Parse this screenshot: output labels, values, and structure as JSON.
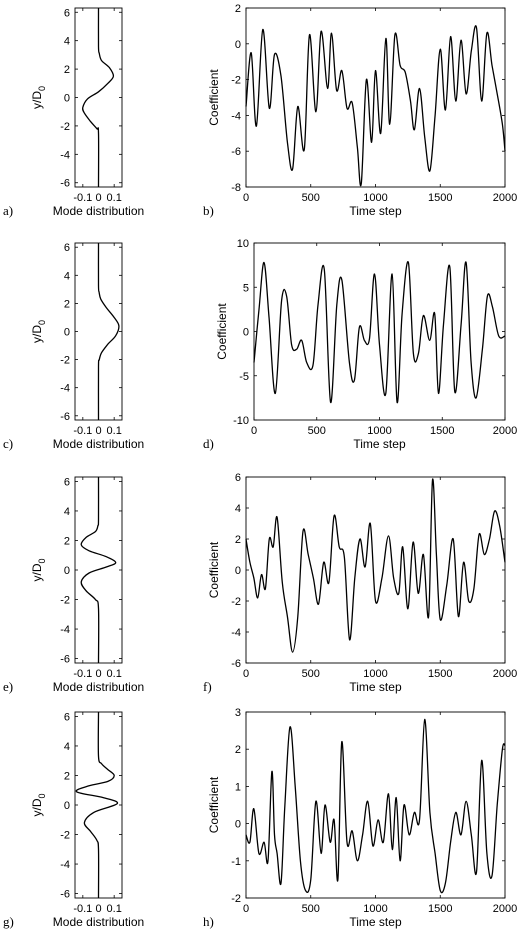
{
  "chart_data": [
    {
      "type": "line",
      "panel_label": "a)",
      "xlabel": "Mode distribution",
      "ylabel": "y/D_0",
      "xlim": [
        -0.15,
        0.15
      ],
      "ylim": [
        -6.3,
        6.3
      ],
      "xticks": [
        -0.1,
        0,
        0.1
      ],
      "xticklabels": [
        "-0.1",
        "0",
        "0.1"
      ],
      "yticks": [
        -6,
        -4,
        -2,
        0,
        2,
        4,
        6
      ],
      "yticklabels": [
        "-6",
        "-4",
        "-2",
        "0",
        "2",
        "4",
        "6"
      ],
      "curve_points": [
        [
          0,
          -6.3
        ],
        [
          0,
          -2.5
        ],
        [
          -0.01,
          -2.2
        ],
        [
          -0.05,
          -1.7
        ],
        [
          -0.09,
          -1.1
        ],
        [
          -0.1,
          -0.7
        ],
        [
          -0.07,
          -0.1
        ],
        [
          0,
          0.4
        ],
        [
          0.06,
          1.0
        ],
        [
          0.095,
          1.5
        ],
        [
          0.07,
          2.1
        ],
        [
          0.02,
          2.6
        ],
        [
          0.005,
          3.1
        ],
        [
          0,
          3.6
        ],
        [
          0,
          6.3
        ]
      ]
    },
    {
      "type": "line",
      "panel_label": "b)",
      "xlabel": "Time step",
      "ylabel": "Coefficient",
      "xlim": [
        0,
        2000
      ],
      "ylim": [
        -8,
        2
      ],
      "xticks": [
        0,
        500,
        1000,
        1500,
        2000
      ],
      "xticklabels": [
        "0",
        "500",
        "1000",
        "1500",
        "2000"
      ],
      "yticks": [
        -8,
        -6,
        -4,
        -2,
        0,
        2
      ],
      "yticklabels": [
        "-8",
        "-6",
        "-4",
        "-2",
        "0",
        "2"
      ],
      "x": [
        0,
        40,
        80,
        130,
        180,
        220,
        270,
        320,
        360,
        400,
        450,
        490,
        540,
        580,
        630,
        660,
        700,
        740,
        780,
        820,
        860,
        890,
        930,
        970,
        1000,
        1040,
        1080,
        1110,
        1150,
        1190,
        1230,
        1270,
        1300,
        1340,
        1380,
        1420,
        1460,
        1500,
        1540,
        1580,
        1620,
        1660,
        1700,
        1740,
        1780,
        1820,
        1860,
        1900,
        1940,
        1980,
        2000
      ],
      "y": [
        -3.5,
        -0.5,
        -4.6,
        0.8,
        -3.6,
        -0.6,
        -1.8,
        -5.5,
        -7.0,
        -3.5,
        -5.9,
        0.5,
        -3.8,
        0.7,
        -2.5,
        0.6,
        -2.6,
        -1.5,
        -3.6,
        -3.3,
        -5.8,
        -7.8,
        -2.0,
        -5.5,
        -1.5,
        -5.0,
        0.3,
        -4.5,
        0.5,
        -1.2,
        -1.6,
        -3.2,
        -4.8,
        -2.5,
        -5.2,
        -7.1,
        -4.0,
        -0.3,
        -3.7,
        0.4,
        -3.2,
        0.2,
        -2.8,
        -0.4,
        0.9,
        -3.2,
        0.6,
        -1.2,
        -2.8,
        -4.5,
        -6.0
      ]
    },
    {
      "type": "line",
      "panel_label": "c)",
      "xlabel": "Mode distribution",
      "ylabel": "y/D_0",
      "xlim": [
        -0.15,
        0.15
      ],
      "ylim": [
        -6.3,
        6.3
      ],
      "xticks": [
        -0.1,
        0,
        0.1
      ],
      "xticklabels": [
        "-0.1",
        "0",
        "0.1"
      ],
      "yticks": [
        -6,
        -4,
        -2,
        0,
        2,
        4,
        6
      ],
      "yticklabels": [
        "-6",
        "-4",
        "-2",
        "0",
        "2",
        "4",
        "6"
      ],
      "curve_points": [
        [
          0,
          -6.3
        ],
        [
          0,
          -2.5
        ],
        [
          0.005,
          -2.0
        ],
        [
          0.02,
          -1.5
        ],
        [
          0.06,
          -0.9
        ],
        [
          0.11,
          -0.3
        ],
        [
          0.13,
          0.4
        ],
        [
          0.1,
          1.0
        ],
        [
          0.05,
          1.7
        ],
        [
          0.015,
          2.3
        ],
        [
          0.004,
          2.8
        ],
        [
          0,
          3.3
        ],
        [
          0,
          6.3
        ]
      ]
    },
    {
      "type": "line",
      "panel_label": "d)",
      "xlabel": "Time step",
      "ylabel": "Coefficient",
      "xlim": [
        0,
        2000
      ],
      "ylim": [
        -10,
        10
      ],
      "xticks": [
        0,
        500,
        1000,
        1500,
        2000
      ],
      "xticklabels": [
        "0",
        "500",
        "1000",
        "1500",
        "2000"
      ],
      "yticks": [
        -10,
        -5,
        0,
        5,
        10
      ],
      "yticklabels": [
        "-10",
        "-5",
        "0",
        "5",
        "10"
      ],
      "x": [
        0,
        40,
        80,
        120,
        170,
        220,
        260,
        300,
        340,
        380,
        420,
        470,
        510,
        560,
        610,
        660,
        700,
        760,
        800,
        840,
        880,
        920,
        960,
        1000,
        1050,
        1100,
        1140,
        1180,
        1230,
        1270,
        1310,
        1350,
        1400,
        1440,
        1470,
        1510,
        1560,
        1600,
        1650,
        1690,
        1730,
        1770,
        1820,
        1860,
        1900,
        1950,
        2000
      ],
      "y": [
        -3.5,
        2.5,
        7.8,
        1.5,
        -7.0,
        3.5,
        4.0,
        -1.5,
        -2.0,
        -1.0,
        -3.5,
        -3.8,
        3.0,
        7.0,
        -8.0,
        3.0,
        5.8,
        -3.5,
        -5.5,
        0.5,
        -1.0,
        -0.8,
        6.5,
        -1.5,
        -7.0,
        6.5,
        -8.0,
        2.0,
        7.8,
        -2.5,
        -2.5,
        1.8,
        -1.0,
        2.0,
        -7.0,
        0.8,
        7.3,
        -6.8,
        0.8,
        7.8,
        -3.5,
        -7.5,
        -2.0,
        4.0,
        2.8,
        -0.5,
        -0.5
      ]
    },
    {
      "type": "line",
      "panel_label": "e)",
      "xlabel": "Mode distribution",
      "ylabel": "y/D_0",
      "xlim": [
        -0.15,
        0.15
      ],
      "ylim": [
        -6.3,
        6.3
      ],
      "xticks": [
        -0.1,
        0,
        0.1
      ],
      "xticklabels": [
        "-0.1",
        "0",
        "0.1"
      ],
      "yticks": [
        -6,
        -4,
        -2,
        0,
        2,
        4,
        6
      ],
      "yticklabels": [
        "-6",
        "-4",
        "-2",
        "0",
        "2",
        "4",
        "6"
      ],
      "curve_points": [
        [
          0,
          -6.3
        ],
        [
          0,
          -2.6
        ],
        [
          -0.02,
          -2.0
        ],
        [
          -0.08,
          -1.4
        ],
        [
          -0.11,
          -0.8
        ],
        [
          -0.06,
          -0.2
        ],
        [
          0.05,
          0.2
        ],
        [
          0.11,
          0.5
        ],
        [
          0.05,
          0.9
        ],
        [
          -0.06,
          1.3
        ],
        [
          -0.11,
          1.7
        ],
        [
          -0.08,
          2.2
        ],
        [
          -0.02,
          2.6
        ],
        [
          -0.004,
          3.0
        ],
        [
          0,
          3.4
        ],
        [
          0,
          6.3
        ]
      ]
    },
    {
      "type": "line",
      "panel_label": "f)",
      "xlabel": "Time step",
      "ylabel": "Coefficient",
      "xlim": [
        0,
        2000
      ],
      "ylim": [
        -6,
        6
      ],
      "xticks": [
        0,
        500,
        1000,
        1500,
        2000
      ],
      "xticklabels": [
        "0",
        "500",
        "1000",
        "1500",
        "2000"
      ],
      "yticks": [
        -6,
        -4,
        -2,
        0,
        2,
        4,
        6
      ],
      "yticklabels": [
        "-6",
        "-4",
        "-2",
        "0",
        "2",
        "4",
        "6"
      ],
      "x": [
        0,
        30,
        60,
        90,
        120,
        150,
        180,
        210,
        240,
        280,
        320,
        360,
        400,
        440,
        480,
        520,
        560,
        600,
        640,
        680,
        720,
        760,
        800,
        840,
        880,
        920,
        960,
        1000,
        1050,
        1100,
        1140,
        1180,
        1210,
        1250,
        1290,
        1330,
        1370,
        1410,
        1440,
        1470,
        1500,
        1550,
        1600,
        1640,
        1680,
        1720,
        1760,
        1800,
        1840,
        1880,
        1920,
        1960,
        2000
      ],
      "y": [
        2.0,
        0.5,
        -0.5,
        -1.8,
        -0.3,
        -1.2,
        2.0,
        1.5,
        3.4,
        -0.8,
        -3.0,
        -5.3,
        -3.0,
        2.5,
        1.0,
        -0.5,
        -2.2,
        0.5,
        -0.8,
        3.5,
        1.5,
        0.8,
        -4.5,
        -0.5,
        2.0,
        0.2,
        3.0,
        -2.0,
        -0.5,
        2.2,
        -0.5,
        -1.5,
        1.5,
        -2.5,
        1.8,
        -1.5,
        1.0,
        -3.0,
        5.8,
        1.0,
        -3.2,
        -1.0,
        2.0,
        -3.0,
        0.5,
        -2.0,
        -1.2,
        2.3,
        1.0,
        2.0,
        3.8,
        2.8,
        0.5
      ]
    },
    {
      "type": "line",
      "panel_label": "g)",
      "xlabel": "Mode distribution",
      "ylabel": "y/D_0",
      "xlim": [
        -0.15,
        0.15
      ],
      "ylim": [
        -6.3,
        6.3
      ],
      "xticks": [
        -0.1,
        0,
        0.1
      ],
      "xticklabels": [
        "-0.1",
        "0",
        "0.1"
      ],
      "yticks": [
        -6,
        -4,
        -2,
        0,
        2,
        4,
        6
      ],
      "yticklabels": [
        "-6",
        "-4",
        "-2",
        "0",
        "2",
        "4",
        "6"
      ],
      "curve_points": [
        [
          0,
          -6.3
        ],
        [
          0,
          -3.0
        ],
        [
          -0.01,
          -2.4
        ],
        [
          -0.05,
          -1.8
        ],
        [
          -0.09,
          -1.2
        ],
        [
          -0.03,
          -0.5
        ],
        [
          0.12,
          0.1
        ],
        [
          0.03,
          0.5
        ],
        [
          -0.14,
          0.9
        ],
        [
          -0.06,
          1.3
        ],
        [
          0.06,
          1.6
        ],
        [
          0.1,
          2.0
        ],
        [
          0.06,
          2.4
        ],
        [
          0.02,
          2.8
        ],
        [
          0,
          3.3
        ],
        [
          0,
          6.3
        ]
      ]
    },
    {
      "type": "line",
      "panel_label": "h)",
      "xlabel": "Time step",
      "ylabel": "Coefficient",
      "xlim": [
        0,
        2000
      ],
      "ylim": [
        -2,
        3
      ],
      "xticks": [
        0,
        500,
        1000,
        1500,
        2000
      ],
      "xticklabels": [
        "0",
        "500",
        "1000",
        "1500",
        "2000"
      ],
      "yticks": [
        -2,
        -1,
        0,
        1,
        2,
        3
      ],
      "yticklabels": [
        "-2",
        "-1",
        "0",
        "1",
        "2",
        "3"
      ],
      "x": [
        0,
        30,
        60,
        100,
        140,
        170,
        200,
        220,
        240,
        270,
        300,
        340,
        380,
        420,
        460,
        500,
        540,
        580,
        610,
        650,
        680,
        710,
        740,
        780,
        820,
        860,
        900,
        940,
        980,
        1020,
        1060,
        1100,
        1130,
        1160,
        1190,
        1220,
        1260,
        1300,
        1340,
        1380,
        1420,
        1460,
        1500,
        1540,
        1580,
        1620,
        1660,
        1700,
        1740,
        1780,
        1820,
        1860,
        1900,
        1940,
        1980,
        2000
      ],
      "y": [
        -0.3,
        -0.5,
        0.4,
        -0.8,
        -0.5,
        -1.0,
        1.4,
        -0.3,
        -0.8,
        -1.6,
        0.5,
        2.6,
        1.0,
        -1.0,
        -1.8,
        -1.5,
        0.6,
        -0.8,
        0.5,
        -0.5,
        0.1,
        -1.5,
        2.2,
        -0.5,
        -0.2,
        -1.0,
        -0.3,
        0.6,
        -0.6,
        0.1,
        -0.5,
        0.8,
        -0.7,
        0.7,
        -1.0,
        0.5,
        -0.3,
        0.3,
        0.1,
        2.8,
        0.3,
        -0.8,
        -1.8,
        -1.6,
        -0.5,
        0.3,
        -0.3,
        0.6,
        -0.3,
        -1.3,
        1.7,
        -0.8,
        -1.4,
        0.5,
        2.0,
        2.1
      ]
    }
  ]
}
